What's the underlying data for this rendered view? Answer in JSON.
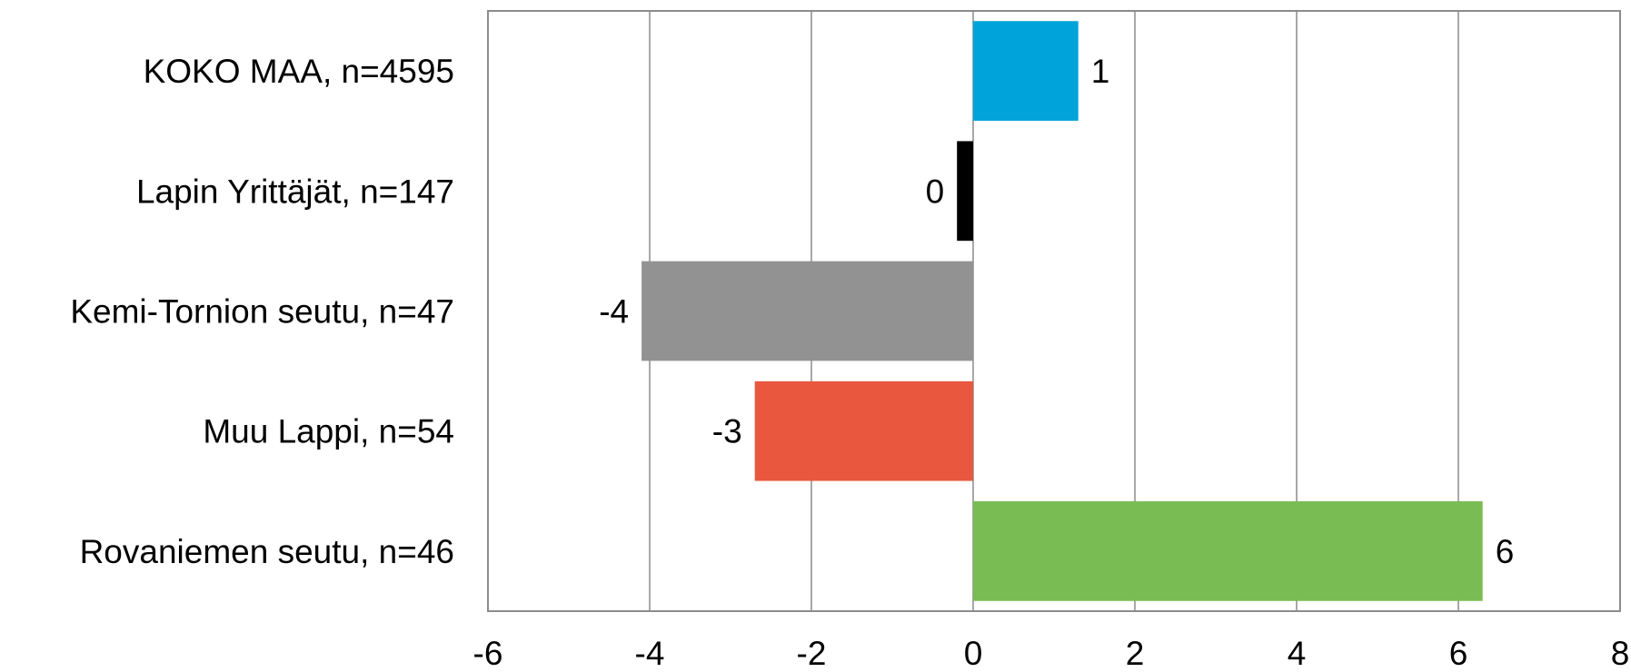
{
  "chart_data": {
    "type": "bar",
    "orientation": "horizontal",
    "categories": [
      "KOKO MAA, n=4595",
      "Lapin Yrittäjät, n=147",
      "Kemi-Tornion seutu, n=47",
      "Muu Lappi, n=54",
      "Rovaniemen seutu, n=46"
    ],
    "values": [
      1.3,
      -0.2,
      -4.1,
      -2.7,
      6.3
    ],
    "data_labels": [
      "1",
      "0",
      "-4",
      "-3",
      "6"
    ],
    "colors": [
      "#00a3da",
      "#000000",
      "#929292",
      "#e8573e",
      "#78bc53"
    ],
    "xlim": [
      -6,
      8
    ],
    "x_ticks": [
      -6,
      -4,
      -2,
      0,
      2,
      4,
      6,
      8
    ],
    "x_tick_labels": [
      "-6",
      "-4",
      "-2",
      "0",
      "2",
      "4",
      "6",
      "8"
    ],
    "grid": "vertical",
    "title": "",
    "xlabel": "",
    "ylabel": ""
  }
}
